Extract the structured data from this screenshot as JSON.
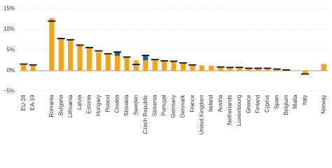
{
  "chart_data": {
    "type": "bar",
    "stacked": true,
    "categories": [
      "EU-28",
      "EA-19",
      null,
      "Romania",
      "Bulgaria",
      "Lithuania",
      "Latvia",
      "Estonia",
      "Hungary",
      "Poland",
      "Croatia",
      "Slovakia",
      "Sweden",
      "Czech Republic",
      "Slovenia",
      "Portugal",
      "Germany",
      "Denmark",
      "France",
      "United Kingdom",
      "Ireland",
      "Austria",
      "Netherlands",
      "Luxembourg",
      "Greece",
      "Finland",
      "Cyprus",
      "Spain",
      "Belgium",
      "Malta",
      "Italy",
      null,
      "Norway"
    ],
    "series": [
      {
        "color": "#f5a318",
        "values": [
          1.4,
          1.3,
          null,
          12.7,
          7.8,
          7.5,
          6.2,
          5.5,
          4.5,
          4.2,
          3.6,
          3.5,
          2.5,
          2.5,
          2.7,
          2.5,
          2.4,
          1.8,
          1.4,
          1.3,
          1.2,
          1.0,
          0.9,
          0.8,
          0.7,
          0.6,
          0.5,
          0.4,
          0.3,
          0.1,
          -0.7,
          null,
          1.6
        ]
      },
      {
        "color": "#2b5d8c",
        "values": [
          null,
          null,
          null,
          null,
          null,
          null,
          null,
          null,
          null,
          null,
          1.1,
          null,
          null,
          1.3,
          null,
          null,
          null,
          null,
          null,
          null,
          null,
          null,
          null,
          null,
          null,
          null,
          null,
          null,
          null,
          null,
          null,
          null,
          null
        ]
      },
      {
        "color": "#111111",
        "type": "marker",
        "values": [
          1.6,
          1.4,
          null,
          12.0,
          7.8,
          7.5,
          6.2,
          5.6,
          4.8,
          4.1,
          4.5,
          3.3,
          1.5,
          3.7,
          2.7,
          2.4,
          2.3,
          1.9,
          1.4,
          null,
          null,
          0.9,
          0.8,
          0.8,
          0.6,
          0.6,
          0.6,
          0.4,
          0.2,
          null,
          -0.8,
          null,
          null
        ]
      }
    ],
    "ylim": [
      -5,
      15
    ],
    "yticks": [
      {
        "value": -5,
        "label": "−5%"
      },
      {
        "value": 0,
        "label": "0%"
      },
      {
        "value": 5,
        "label": "5%"
      },
      {
        "value": 10,
        "label": "10%"
      },
      {
        "value": 15,
        "label": "15%"
      }
    ],
    "grid": true
  }
}
